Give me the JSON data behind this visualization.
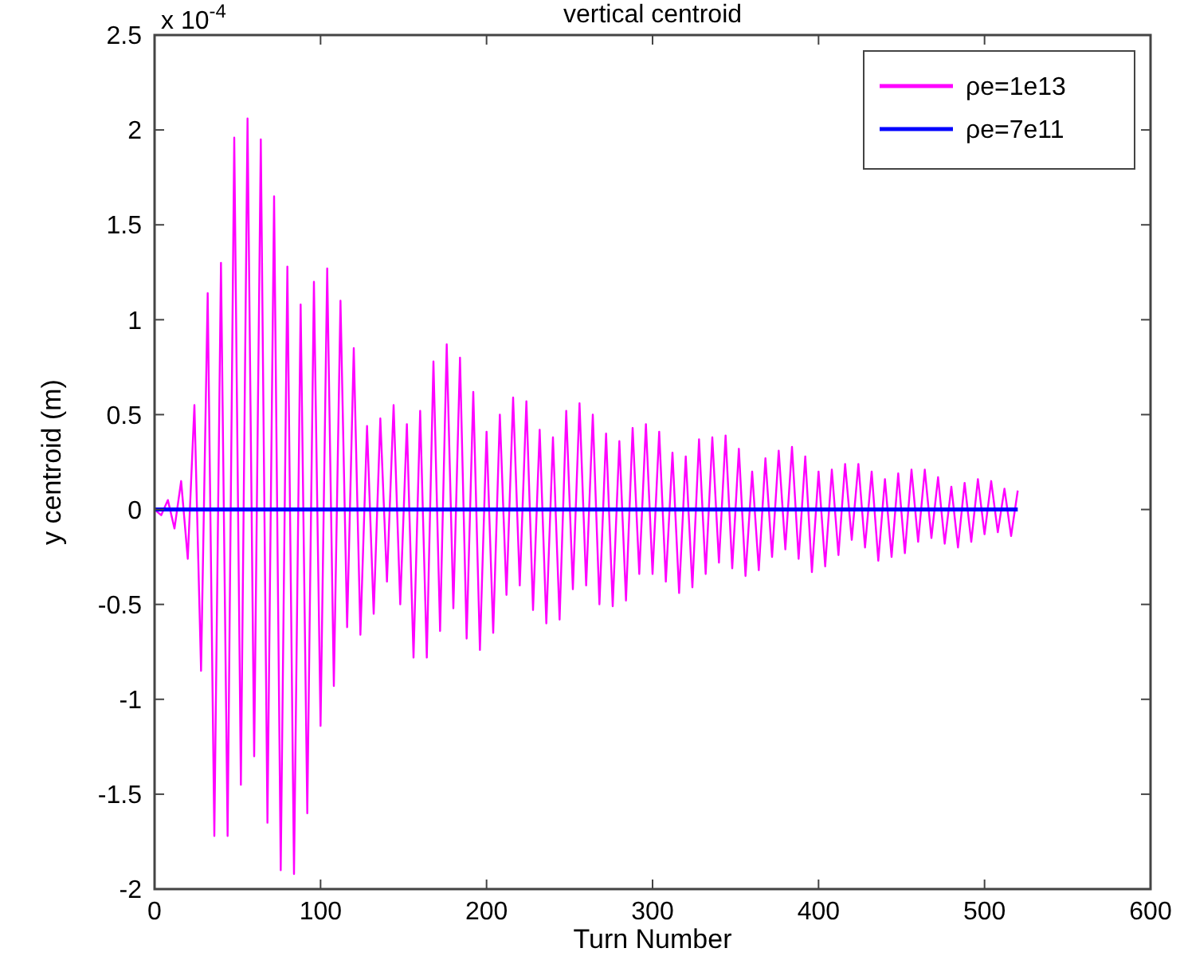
{
  "chart_data": {
    "type": "line",
    "title": "vertical centroid",
    "xlabel": "Turn Number",
    "ylabel": "y centroid (m)",
    "annotations": [
      "x 10$^{-4}$"
    ],
    "xlim": [
      0,
      600
    ],
    "xticks": [
      0,
      100,
      200,
      300,
      400,
      500,
      600
    ],
    "ylim": [
      -2,
      2.5
    ],
    "yticks": [
      -2,
      -1.5,
      -1,
      -0.5,
      0,
      0.5,
      1,
      1.5,
      2,
      2.5
    ],
    "grid": false,
    "legend": "top right",
    "line_style": "solid",
    "marker": "none",
    "series": [
      {
        "name": "ρe=1e13",
        "color": "#ff00ff",
        "x": [
          0,
          4,
          8,
          12,
          16,
          20,
          24,
          28,
          32,
          36,
          40,
          44,
          48,
          52,
          56,
          60,
          64,
          68,
          72,
          76,
          80,
          84,
          88,
          92,
          96,
          100,
          104,
          108,
          112,
          116,
          120,
          124,
          128,
          132,
          136,
          140,
          144,
          148,
          152,
          156,
          160,
          164,
          168,
          172,
          176,
          180,
          184,
          188,
          192,
          196,
          200,
          204,
          208,
          212,
          216,
          220,
          224,
          228,
          232,
          236,
          240,
          244,
          248,
          252,
          256,
          260,
          264,
          268,
          272,
          276,
          280,
          284,
          288,
          292,
          296,
          300,
          304,
          308,
          312,
          316,
          320,
          324,
          328,
          332,
          336,
          340,
          344,
          348,
          352,
          356,
          360,
          364,
          368,
          372,
          376,
          380,
          384,
          388,
          392,
          396,
          400,
          404,
          408,
          412,
          416,
          420,
          424,
          428,
          432,
          436,
          440,
          444,
          448,
          452,
          456,
          460,
          464,
          468,
          472,
          476,
          480,
          484,
          488,
          492,
          496,
          500,
          504,
          508,
          512,
          516,
          520
        ],
        "values": [
          0,
          -0.03,
          0.05,
          -0.1,
          0.15,
          -0.26,
          0.55,
          -0.85,
          1.14,
          -1.72,
          1.3,
          -1.72,
          1.96,
          -1.45,
          2.06,
          -1.3,
          1.95,
          -1.65,
          1.65,
          -1.9,
          1.28,
          -1.92,
          1.08,
          -1.6,
          1.2,
          -1.14,
          1.27,
          -0.93,
          1.1,
          -0.62,
          0.85,
          -0.66,
          0.44,
          -0.55,
          0.48,
          -0.38,
          0.55,
          -0.5,
          0.45,
          -0.78,
          0.52,
          -0.78,
          0.78,
          -0.64,
          0.87,
          -0.52,
          0.8,
          -0.68,
          0.62,
          -0.74,
          0.41,
          -0.65,
          0.5,
          -0.45,
          0.59,
          -0.4,
          0.57,
          -0.53,
          0.42,
          -0.6,
          0.38,
          -0.58,
          0.52,
          -0.42,
          0.56,
          -0.4,
          0.5,
          -0.5,
          0.4,
          -0.51,
          0.36,
          -0.48,
          0.43,
          -0.34,
          0.45,
          -0.34,
          0.41,
          -0.38,
          0.3,
          -0.44,
          0.28,
          -0.41,
          0.37,
          -0.34,
          0.38,
          -0.28,
          0.39,
          -0.31,
          0.32,
          -0.35,
          0.2,
          -0.32,
          0.27,
          -0.25,
          0.31,
          -0.21,
          0.33,
          -0.26,
          0.28,
          -0.33,
          0.2,
          -0.3,
          0.21,
          -0.24,
          0.24,
          -0.16,
          0.24,
          -0.2,
          0.2,
          -0.27,
          0.16,
          -0.25,
          0.19,
          -0.23,
          0.21,
          -0.17,
          0.21,
          -0.15,
          0.17,
          -0.18,
          0.12,
          -0.2,
          0.14,
          -0.17,
          0.16,
          -0.13,
          0.15,
          -0.12,
          0.11,
          -0.14,
          0.1
        ]
      },
      {
        "name": "ρe=7e11",
        "color": "#0000ff",
        "x": [
          0,
          520
        ],
        "values": [
          0,
          0
        ]
      }
    ]
  }
}
